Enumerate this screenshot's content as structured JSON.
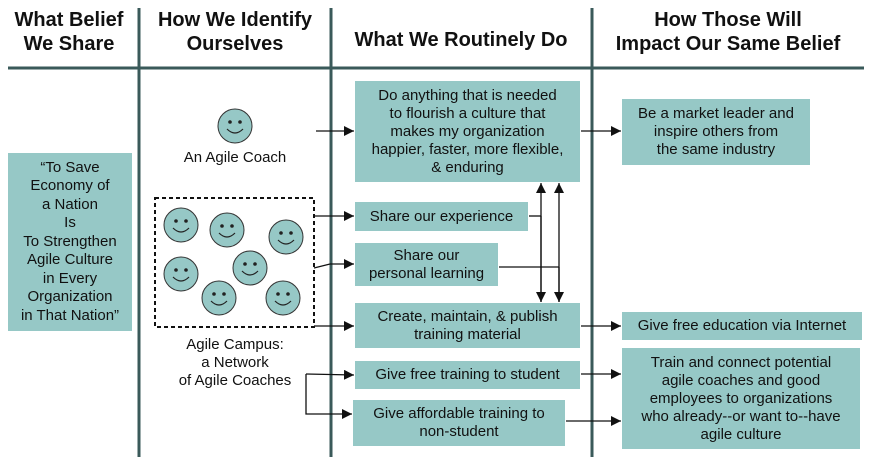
{
  "headers": {
    "col1": "What Belief\nWe Share",
    "col2": "How We Identify\nOurselves",
    "col3": "What We Routinely Do",
    "col4": "How Those Will\nImpact Our Same Belief"
  },
  "belief": "“To Save\nEconomy of\na Nation\nIs\nTo Strengthen\nAgile Culture\nin Every\nOrganization\nin That Nation”",
  "identities": {
    "coach": "An Agile Coach",
    "campus": "Agile Campus:\na Network\nof Agile Coaches"
  },
  "activities": {
    "flourish": "Do anything that is needed\nto flourish a culture that\nmakes my organization\nhappier, faster, more flexible,\n& enduring",
    "experience": "Share our experience",
    "learning": "Share our\npersonal learning",
    "training_material": "Create, maintain, & publish\ntraining material",
    "free_training": "Give free training to student",
    "affordable_training": "Give affordable training to\nnon-student"
  },
  "impacts": {
    "market_leader": "Be a market leader and\ninspire others from\nthe same industry",
    "free_education": "Give free education via Internet",
    "train_connect": "Train and connect potential\nagile coaches and good\nemployees to organizations\nwho already--or want to--have\nagile culture"
  },
  "colors": {
    "box_fill": "#96c8c6",
    "line": "#3a5a5a",
    "text": "#111111"
  },
  "icons": [
    "smiley-face-icon"
  ]
}
